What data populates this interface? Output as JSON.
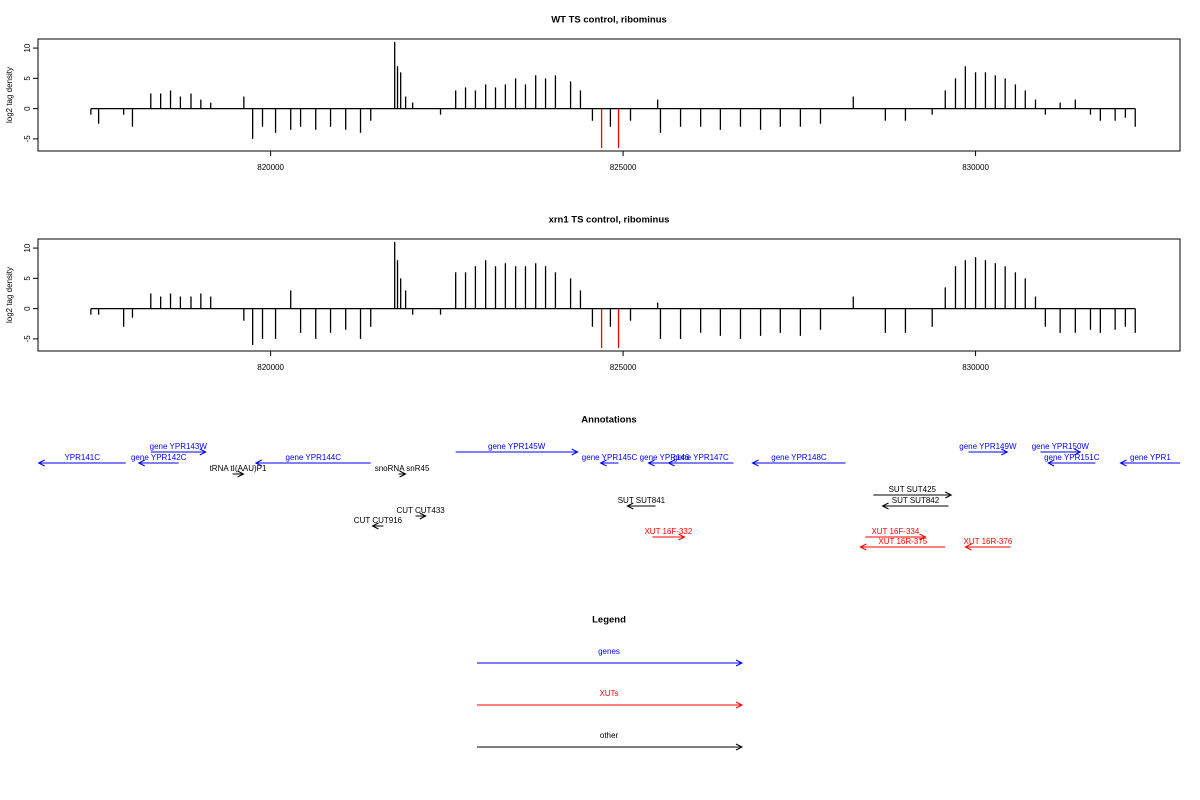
{
  "chart_data": [
    {
      "type": "bar",
      "title": "WT TS control, ribominus",
      "ylabel": "log2 tag density",
      "xlim": [
        816700,
        832900
      ],
      "ylim": [
        -7,
        11.5
      ],
      "xticks": [
        820000,
        825000,
        830000
      ],
      "yticks": [
        -5,
        0,
        5,
        10
      ],
      "series": [
        {
          "color": "#000000",
          "x": [
            817450,
            817560,
            817915,
            818040,
            818300,
            818440,
            818580,
            818720,
            818870,
            819010,
            819150,
            819620,
            819745,
            819885,
            820070,
            820285,
            820425,
            820640,
            820850,
            821065,
            821275,
            821420,
            821760,
            821800,
            821845,
            821915,
            822015,
            822410,
            822625,
            822765,
            822905,
            823050,
            823190,
            823330,
            823475,
            823615,
            823760,
            823900,
            824040,
            824255,
            824395,
            824565,
            824820,
            825105,
            825490,
            825530,
            825815,
            826100,
            826380,
            826665,
            826950,
            827230,
            827515,
            827800,
            828265,
            828720,
            829005,
            829385,
            829570,
            829715,
            829855,
            830000,
            830140,
            830280,
            830420,
            830565,
            830705,
            830850,
            830990,
            831200,
            831415,
            831630,
            831770,
            831980,
            832125,
            832265
          ],
          "values": [
            -1,
            -2.5,
            -1,
            -3,
            2.5,
            2.5,
            3,
            2,
            2.5,
            1.5,
            1,
            2,
            -5,
            -3,
            -4,
            -3.5,
            -3,
            -3.5,
            -3,
            -3.5,
            -4,
            -2,
            11,
            7,
            6,
            2,
            1,
            -1,
            3,
            3.5,
            3,
            4,
            3.5,
            4,
            5,
            4,
            5.5,
            5,
            5.5,
            4.5,
            3,
            -2,
            -3,
            -2,
            1.5,
            -4,
            -3,
            -3,
            -3.5,
            -3,
            -3.5,
            -3,
            -3,
            -2.5,
            2,
            -2,
            -2,
            -1,
            3,
            5,
            7,
            6,
            6,
            5.5,
            5,
            4,
            3,
            1.5,
            -1,
            1,
            1.5,
            -1,
            -2,
            -2,
            -1.5,
            -3
          ]
        },
        {
          "color": "#ff0000",
          "x": [
            824695,
            824935
          ],
          "values": [
            -6.5,
            -6.5
          ]
        }
      ]
    },
    {
      "type": "bar",
      "title": "xrn1 TS control, ribominus",
      "ylabel": "log2 tag density",
      "xlim": [
        816700,
        832900
      ],
      "ylim": [
        -7,
        11.5
      ],
      "xticks": [
        820000,
        825000,
        830000
      ],
      "yticks": [
        -5,
        0,
        5,
        10
      ],
      "series": [
        {
          "color": "#000000",
          "x": [
            817450,
            817560,
            817915,
            818040,
            818300,
            818440,
            818580,
            818720,
            818870,
            819010,
            819150,
            819620,
            819745,
            819885,
            820070,
            820285,
            820425,
            820640,
            820850,
            821065,
            821275,
            821420,
            821760,
            821800,
            821845,
            821915,
            822015,
            822410,
            822625,
            822765,
            822905,
            823050,
            823190,
            823330,
            823475,
            823615,
            823760,
            823900,
            824040,
            824255,
            824395,
            824565,
            824820,
            825105,
            825490,
            825530,
            825815,
            826100,
            826380,
            826665,
            826950,
            827230,
            827515,
            827800,
            828265,
            828720,
            829005,
            829385,
            829570,
            829715,
            829855,
            830000,
            830140,
            830280,
            830420,
            830565,
            830705,
            830850,
            830990,
            831200,
            831415,
            831630,
            831770,
            831980,
            832125,
            832265
          ],
          "values": [
            -1,
            -1,
            -3,
            -1.5,
            2.5,
            2,
            2.5,
            2,
            2,
            2.5,
            2,
            -2,
            -6,
            -5,
            -5,
            3,
            -4,
            -5,
            -4,
            -3.5,
            -5,
            -3,
            11,
            8,
            5,
            3,
            -1,
            -1,
            6,
            6,
            7,
            8,
            7,
            7.5,
            7,
            7,
            7.5,
            7,
            6,
            5,
            3,
            -3,
            -3,
            -2,
            1,
            -5,
            -5,
            -4,
            -4.5,
            -5,
            -4.5,
            -4,
            -4.5,
            -3.5,
            2,
            -4,
            -4,
            -3,
            3.5,
            7,
            8,
            8.5,
            8,
            7.5,
            7,
            6,
            5,
            2,
            -3,
            -4,
            -4,
            -3.5,
            -4,
            -3.5,
            -3,
            -4
          ]
        },
        {
          "color": "#ff0000",
          "x": [
            824695,
            824935
          ],
          "values": [
            -6.5,
            -6.5
          ]
        }
      ]
    }
  ],
  "annotations": {
    "title": "Annotations",
    "rows": [
      [
        {
          "label": "gene YPR143W",
          "from": 818300,
          "to": 819080,
          "color": "#0000ff"
        },
        {
          "label": "gene YPR145W",
          "from": 822625,
          "to": 824355,
          "color": "#0000ff"
        },
        {
          "label": "gene YPR149W",
          "from": 829900,
          "to": 830450,
          "color": "#0000ff"
        },
        {
          "label": "gene YPR150W",
          "from": 830920,
          "to": 831485,
          "color": "#0000ff"
        }
      ],
      [
        {
          "label": "YPR141C",
          "from": 817945,
          "to": 816710,
          "color": "#0000ff"
        },
        {
          "label": "gene YPR142C",
          "from": 818695,
          "to": 818130,
          "color": "#0000ff"
        },
        {
          "label": "gene YPR144C",
          "from": 821420,
          "to": 819790,
          "color": "#0000ff"
        },
        {
          "label": "gene YPR145C",
          "from": 824935,
          "to": 824680,
          "color": "#0000ff"
        },
        {
          "label": "gene YPR146",
          "from": 825815,
          "to": 825360,
          "color": "#0000ff"
        },
        {
          "label": "gene YPR147C",
          "from": 826565,
          "to": 825645,
          "color": "#0000ff"
        },
        {
          "label": "gene YPR148C",
          "from": 828155,
          "to": 826835,
          "color": "#0000ff"
        },
        {
          "label": "gene YPR151C",
          "from": 831700,
          "to": 831030,
          "color": "#0000ff"
        },
        {
          "label": "gene YPR1",
          "from": 832905,
          "to": 832055,
          "color": "#0000ff"
        }
      ],
      [
        {
          "label": "tRNA tI(AAU)P1",
          "from": 819460,
          "to": 819615,
          "color": "#000000"
        },
        {
          "label": "snoRNA snR45",
          "from": 821815,
          "to": 821915,
          "color": "#000000"
        }
      ],
      [],
      [
        {
          "label": "SUT SUT425",
          "from": 828550,
          "to": 829655,
          "color": "#000000"
        }
      ],
      [
        {
          "label": "SUT SUT841",
          "from": 825460,
          "to": 825060,
          "color": "#000000"
        },
        {
          "label": "SUT SUT842",
          "from": 829615,
          "to": 828680,
          "color": "#000000"
        }
      ],
      [
        {
          "label": "CUT CUT433",
          "from": 822055,
          "to": 822200,
          "color": "#000000"
        }
      ],
      [
        {
          "label": "CUT CUT916",
          "from": 821600,
          "to": 821445,
          "color": "#000000"
        }
      ],
      [
        {
          "label": "XUT 16F-332",
          "from": 825415,
          "to": 825870,
          "color": "#ff0000"
        },
        {
          "label": "XUT 16F-334",
          "from": 828435,
          "to": 829290,
          "color": "#ff0000"
        }
      ],
      [
        {
          "label": "XUT 16R-375",
          "from": 829570,
          "to": 828365,
          "color": "#ff0000"
        },
        {
          "label": "XUT 16R-376",
          "from": 830495,
          "to": 829855,
          "color": "#ff0000"
        }
      ]
    ]
  },
  "legend": {
    "title": "Legend",
    "entries": [
      {
        "name": "genes",
        "color": "#0000ff"
      },
      {
        "name": "XUTs",
        "color": "#ff0000"
      },
      {
        "name": "other",
        "color": "#000000"
      }
    ]
  }
}
